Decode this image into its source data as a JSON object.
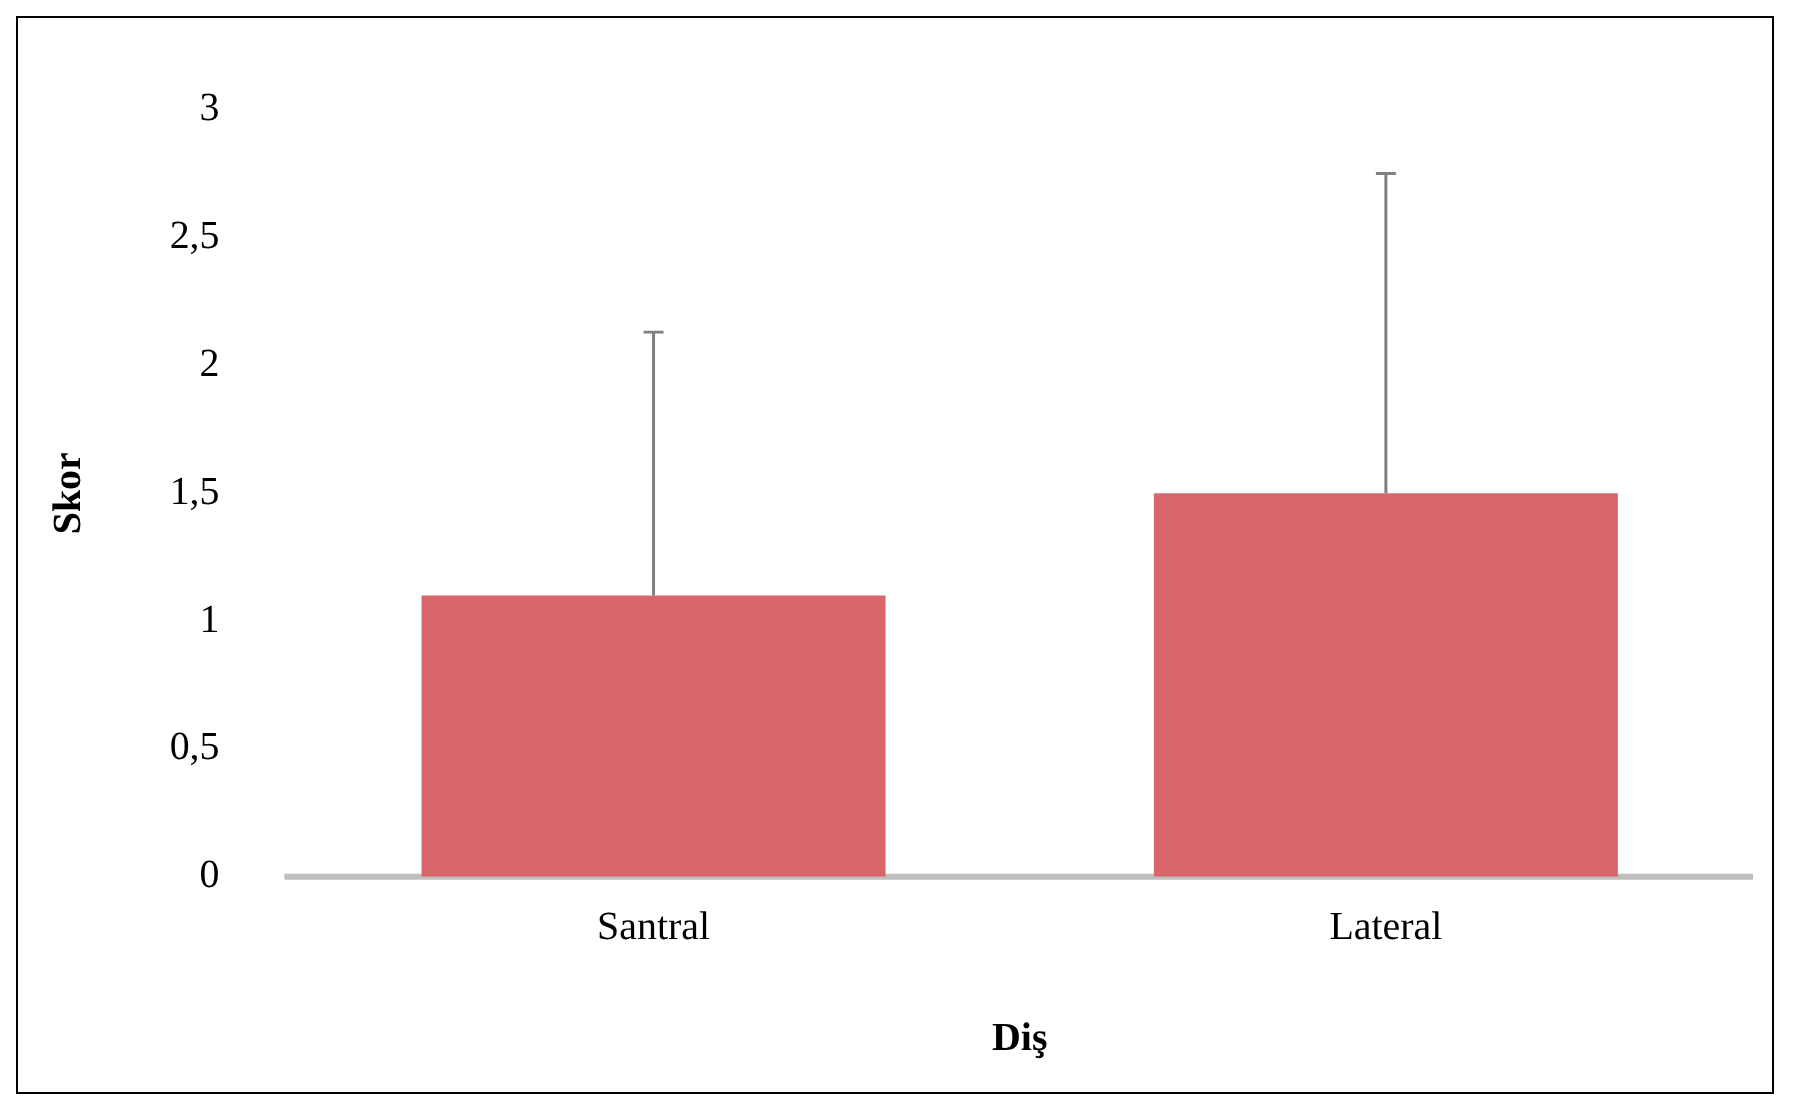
{
  "chart_data": {
    "type": "bar",
    "xlabel": "Diş",
    "ylabel": "Skor",
    "categories": [
      "Santral",
      "Lateral"
    ],
    "values": [
      1.1,
      1.5
    ],
    "color": "#d9666b",
    "errors": [
      [
        1.1,
        2.13
      ],
      [
        1.5,
        2.75
      ]
    ],
    "ylim": [
      0,
      3
    ],
    "yticks": [
      0,
      {
        "value": 0.5,
        "label": "0,5"
      },
      1,
      {
        "value": 1.5,
        "label": "1,5"
      },
      2,
      {
        "value": 2.5,
        "label": "2,5"
      },
      3
    ],
    "grid": false,
    "legend": false
  }
}
